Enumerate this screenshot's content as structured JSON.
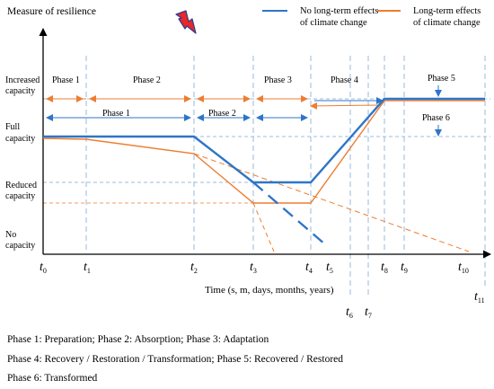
{
  "y_axis_label": "Measure of resilience",
  "x_axis_label": "Time (s, m, days, months, years)",
  "legend": [
    {
      "label_line1": "No long-term effects",
      "label_line2": "of climate change",
      "color": "#2e75c7"
    },
    {
      "label_line1": "Long-term effects",
      "label_line2": "of climate change",
      "color": "#ed7d31"
    }
  ],
  "levels": [
    {
      "line1": "Increased",
      "line2": "capacity"
    },
    {
      "line1": "Full",
      "line2": "capacity"
    },
    {
      "line1": "Reduced",
      "line2": "capacity"
    },
    {
      "line1": "No",
      "line2": "capacity"
    }
  ],
  "time_ticks": [
    "0",
    "1",
    "2",
    "3",
    "4",
    "5",
    "6",
    "7",
    "8",
    "9",
    "10",
    "11"
  ],
  "time_symbol": "t",
  "phase_labels_top": [
    "Phase 1",
    "Phase 2",
    "Phase 3",
    "Phase 4",
    "Phase 5",
    "Phase 6"
  ],
  "phase_labels_blue": [
    "Phase 1",
    "Phase 2"
  ],
  "notes": [
    "Phase 1: Preparation; Phase 2: Absorption; Phase 3: Adaptation",
    "Phase 4: Recovery / Restoration / Transformation; Phase 5: Recovered / Restored",
    "Phase 6: Transformed"
  ],
  "colors": {
    "blue": "#2e75c7",
    "orange": "#ed7d31",
    "guide": "#7fa7d6",
    "lightning": "#e8262b",
    "lightning_edge": "#2a3f8f"
  },
  "icons": {
    "event": "lightning-bolt-icon"
  }
}
